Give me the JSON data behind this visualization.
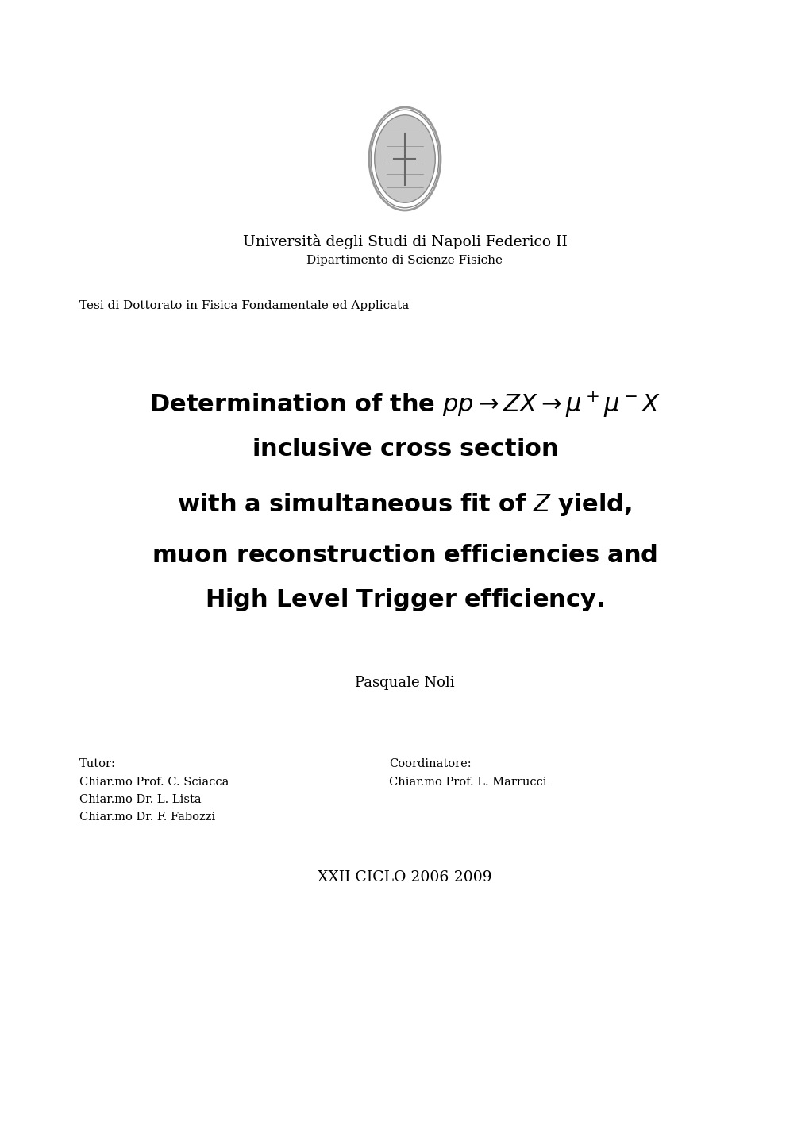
{
  "background_color": "#ffffff",
  "fig_width": 10.2,
  "fig_height": 14.42,
  "university_line1": "Università degli Studi di Napoli Federico II",
  "university_line2": "Dipartimento di Scienze Fisiche",
  "thesis_type": "Tesi di Dottorato in Fisica Fondamentale ed Applicata",
  "title_line1_text": "Determination of the ",
  "title_line1_math": "$pp \\\\rightarrow ZX \\\\rightarrow \\\\mu^+\\\\mu^- X$",
  "title_line2": "inclusive cross section",
  "title_line3": "with a simultaneous fit of $Z$ yield,",
  "title_line4": "muon reconstruction efficiencies and",
  "title_line5": "High Level Trigger efficiency.",
  "author": "Pasquale Noli",
  "tutor_label": "Tutor:",
  "tutor_lines": [
    "Chiar.mo Prof. C. Sciacca",
    "Chiar.mo Dr. L. Lista",
    "Chiar.mo Dr. F. Fabozzi"
  ],
  "coord_label": "Coordinatore:",
  "coord_lines": [
    "Chiar.mo Prof. L. Marrucci"
  ],
  "cycle": "XXII",
  "ciclo_word": "ciclo",
  "years": "2006-2009",
  "seal_color": "#888888",
  "text_color": "#000000"
}
